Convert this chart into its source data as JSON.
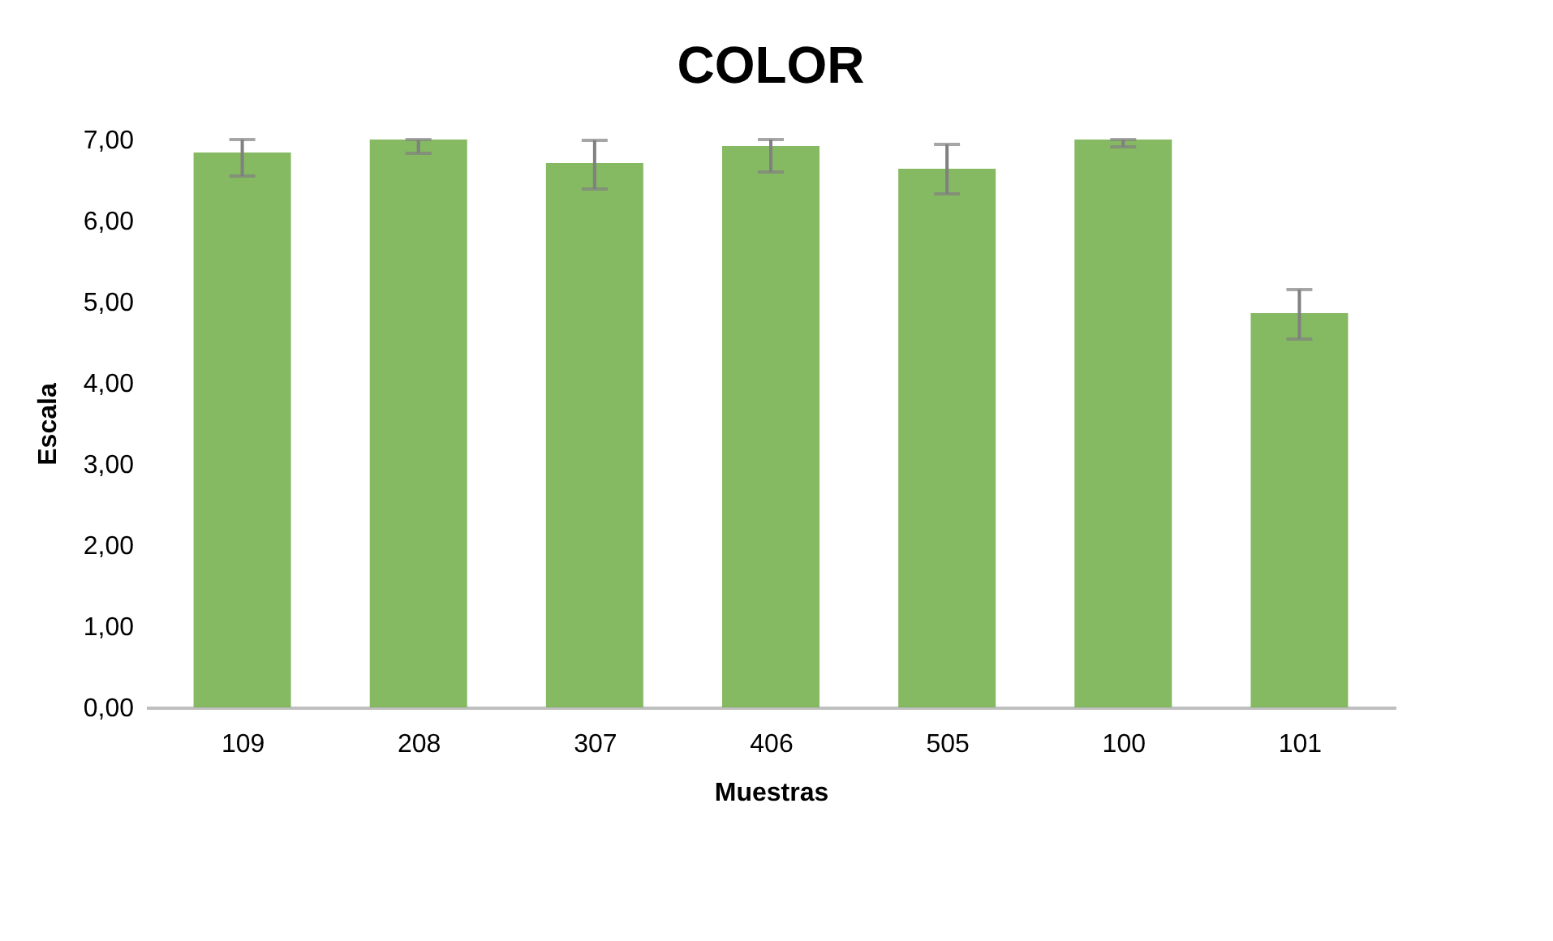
{
  "chart_data": {
    "type": "bar",
    "title": "COLOR",
    "xlabel": "Muestras",
    "ylabel": "Escala",
    "categories": [
      "109",
      "208",
      "307",
      "406",
      "505",
      "100",
      "101"
    ],
    "values": [
      6.84,
      7.0,
      6.71,
      6.92,
      6.64,
      7.0,
      4.86
    ],
    "errors": [
      [
        6.55,
        7.0
      ],
      [
        6.83,
        7.0
      ],
      [
        6.39,
        6.99
      ],
      [
        6.6,
        7.0
      ],
      [
        6.33,
        6.94
      ],
      [
        6.91,
        7.0
      ],
      [
        4.54,
        5.15
      ]
    ],
    "color": "#70ad47",
    "ylim": [
      0,
      7
    ],
    "yticks": [
      {
        "value": 0,
        "label": "0,00"
      },
      {
        "value": 1,
        "label": "1,00"
      },
      {
        "value": 2,
        "label": "2,00"
      },
      {
        "value": 3,
        "label": "3,00"
      },
      {
        "value": 4,
        "label": "4,00"
      },
      {
        "value": 5,
        "label": "5,00"
      },
      {
        "value": 6,
        "label": "6,00"
      },
      {
        "value": 7,
        "label": "7,00"
      }
    ],
    "grid": false
  }
}
